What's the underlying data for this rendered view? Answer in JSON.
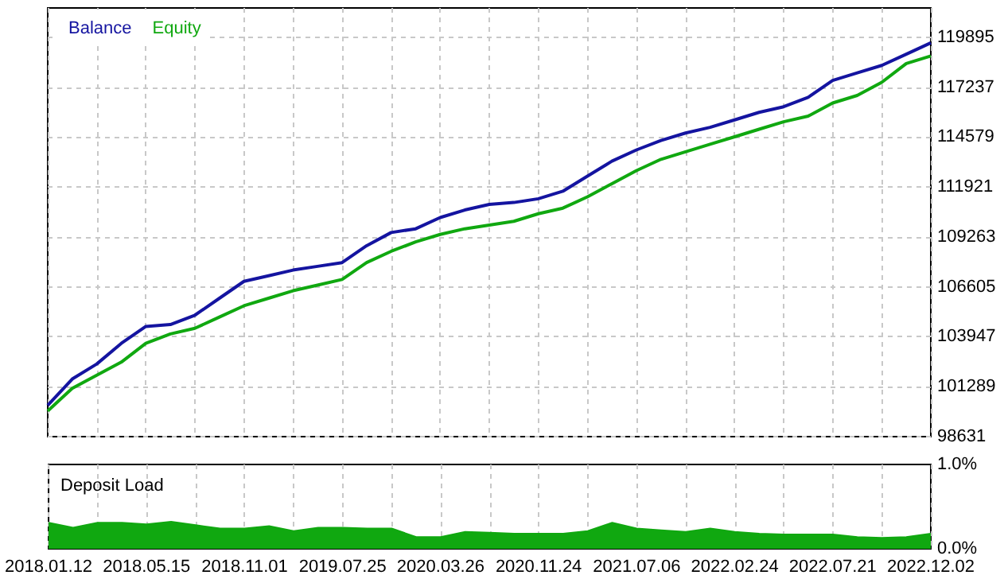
{
  "chart_data": [
    {
      "type": "line",
      "categories": [
        null,
        null,
        null,
        null,
        null,
        null,
        null,
        null,
        null,
        null,
        null,
        null,
        null,
        null,
        null,
        null,
        null,
        null,
        null,
        null,
        null,
        null,
        null,
        null,
        null,
        null,
        null,
        null,
        null,
        null,
        null,
        null,
        null,
        null,
        null,
        null,
        null
      ],
      "series": [
        {
          "name": "Balance",
          "color": "#1414a0",
          "values": [
            100300,
            101700,
            102500,
            103600,
            104500,
            104600,
            105100,
            106000,
            106900,
            107200,
            107500,
            107700,
            107900,
            108800,
            109500,
            109700,
            110300,
            110700,
            111000,
            111100,
            111300,
            111700,
            112500,
            113300,
            113900,
            114400,
            114800,
            115100,
            115500,
            115900,
            116200,
            116700,
            117600,
            118000,
            118400,
            119000,
            119600
          ]
        },
        {
          "name": "Equity",
          "color": "#10a810",
          "values": [
            100000,
            101200,
            101900,
            102600,
            103600,
            104100,
            104400,
            105000,
            105600,
            106000,
            106400,
            106700,
            107000,
            107900,
            108500,
            109000,
            109400,
            109700,
            109900,
            110100,
            110500,
            110800,
            111400,
            112100,
            112800,
            113400,
            113800,
            114200,
            114600,
            115000,
            115400,
            115700,
            116400,
            116800,
            117500,
            118500,
            118900
          ]
        }
      ],
      "ylim": [
        98631,
        121460
      ],
      "yticks": [
        98631,
        101289,
        103947,
        106605,
        109263,
        111921,
        114579,
        117237,
        119895
      ],
      "tick_labels": "y",
      "grid": true,
      "legend": "top left",
      "marker": "none"
    },
    {
      "type": "area",
      "title": "Deposit Load",
      "categories": [
        "2018.01.12",
        null,
        null,
        null,
        "2018.05.15",
        null,
        null,
        null,
        "2018.11.01",
        null,
        null,
        null,
        "2019.07.25",
        null,
        null,
        null,
        "2020.03.26",
        null,
        null,
        null,
        "2020.11.24",
        null,
        null,
        null,
        "2021.07.06",
        null,
        null,
        null,
        "2022.02.24",
        null,
        null,
        null,
        "2022.07.21",
        null,
        null,
        null,
        "2022.12.02"
      ],
      "series": [
        {
          "color": "#10a810",
          "values": [
            0.31,
            0.25,
            0.31,
            0.31,
            0.29,
            0.32,
            0.28,
            0.24,
            0.24,
            0.27,
            0.21,
            0.25,
            0.25,
            0.24,
            0.24,
            0.14,
            0.14,
            0.2,
            0.19,
            0.18,
            0.18,
            0.18,
            0.21,
            0.31,
            0.24,
            0.22,
            0.2,
            0.24,
            0.2,
            0.18,
            0.17,
            0.17,
            0.17,
            0.14,
            0.13,
            0.14,
            0.18
          ]
        }
      ],
      "ylim": [
        0,
        1
      ],
      "yticks": [
        {
          "value": 0,
          "label": "0.0%"
        },
        {
          "value": 1,
          "label": "1.0%"
        }
      ],
      "grid": "x",
      "marker": "none"
    }
  ]
}
